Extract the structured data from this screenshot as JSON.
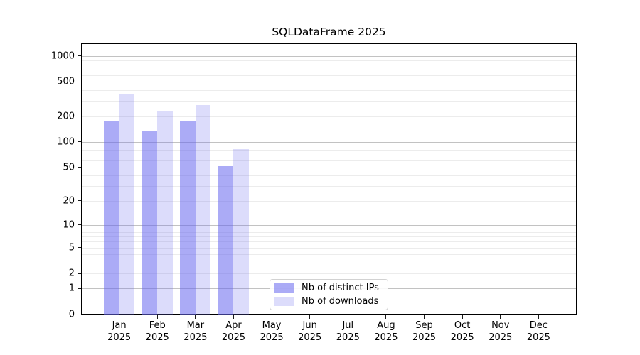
{
  "title": "SQLDataFrame 2025",
  "chart_data": {
    "type": "bar",
    "title": "SQLDataFrame 2025",
    "categories_month": [
      "Jan",
      "Feb",
      "Mar",
      "Apr",
      "May",
      "Jun",
      "Jul",
      "Aug",
      "Sep",
      "Oct",
      "Nov",
      "Dec"
    ],
    "categories_year": "2025",
    "series": [
      {
        "name": "Nb of distinct IPs",
        "color": "rgba(102,102,238,0.55)",
        "values": [
          174,
          136,
          174,
          52,
          0,
          0,
          0,
          0,
          0,
          0,
          0,
          0
        ]
      },
      {
        "name": "Nb of downloads",
        "color": "rgba(102,102,238,0.23)",
        "values": [
          363,
          232,
          270,
          82,
          0,
          0,
          0,
          0,
          0,
          0,
          0,
          0
        ]
      }
    ],
    "y_scale": "log1p",
    "ylim": [
      0,
      1408
    ],
    "y_tick_labels": [
      1000,
      500,
      200,
      100,
      50,
      20,
      10,
      5,
      2,
      1,
      0
    ],
    "y_gridlines_major": [
      1,
      10,
      100,
      1000
    ],
    "y_gridlines_minor": [
      2,
      3,
      4,
      5,
      6,
      7,
      8,
      9,
      20,
      30,
      40,
      50,
      60,
      70,
      80,
      90,
      200,
      300,
      400,
      500,
      600,
      700,
      800,
      900
    ],
    "grid": "on",
    "legend_position": "inside-bottom-center"
  },
  "colors": {
    "bar_base": "#6666ee",
    "gridline_major": "#c2c2c2",
    "gridline_minor": "#ececec",
    "axis": "#000000",
    "background": "#ffffff"
  }
}
